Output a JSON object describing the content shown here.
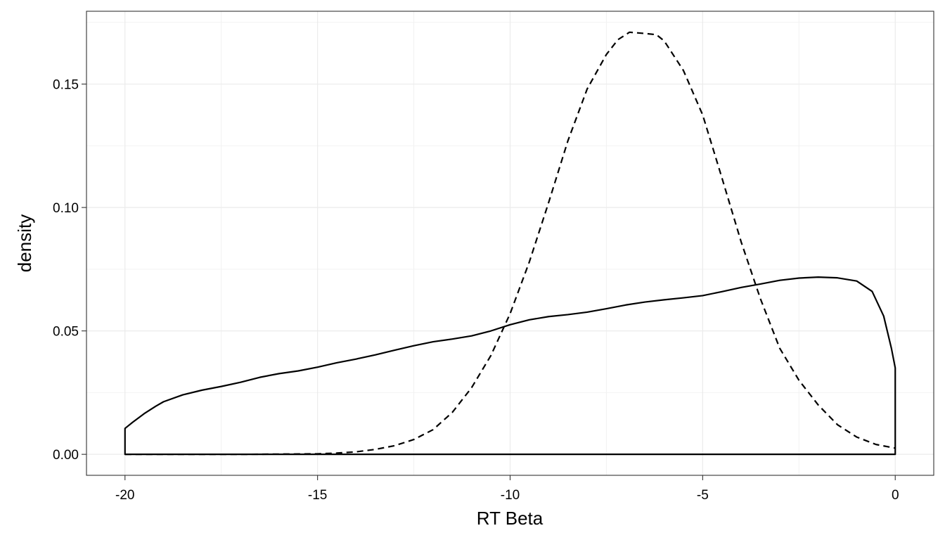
{
  "chart_data": {
    "type": "line",
    "title": "",
    "xlabel": "RT Beta",
    "ylabel": "density",
    "xlim": [
      -21,
      1
    ],
    "ylim": [
      -0.0085,
      0.1795
    ],
    "x_ticks": [
      -20,
      -15,
      -10,
      -5,
      0
    ],
    "x_tick_labels": [
      "-20",
      "-15",
      "-10",
      "-5",
      "0"
    ],
    "y_ticks": [
      0.0,
      0.05,
      0.1,
      0.15
    ],
    "y_tick_labels": [
      "0.00",
      "0.05",
      "0.10",
      "0.15"
    ],
    "grid": true,
    "legend": "none",
    "series": [
      {
        "line_style": "solid",
        "closed_to_baseline": true,
        "x": [
          -20,
          -19.8,
          -19.5,
          -19.2,
          -19,
          -18.5,
          -18,
          -17.5,
          -17,
          -16.5,
          -16,
          -15.5,
          -15,
          -14.5,
          -14,
          -13.5,
          -13,
          -12.5,
          -12,
          -11.5,
          -11,
          -10.5,
          -10,
          -9.5,
          -9,
          -8.5,
          -8,
          -7.5,
          -7,
          -6.5,
          -6,
          -5.5,
          -5,
          -4.5,
          -4,
          -3.5,
          -3,
          -2.5,
          -2,
          -1.5,
          -1,
          -0.6,
          -0.3,
          -0.1,
          0
        ],
        "values": [
          0.0105,
          0.013,
          0.0165,
          0.0195,
          0.0213,
          0.0241,
          0.026,
          0.0275,
          0.0292,
          0.0312,
          0.0327,
          0.0338,
          0.0353,
          0.0371,
          0.0386,
          0.0403,
          0.0422,
          0.044,
          0.0456,
          0.0467,
          0.048,
          0.05,
          0.0525,
          0.0545,
          0.0558,
          0.0566,
          0.0576,
          0.059,
          0.0605,
          0.0617,
          0.0626,
          0.0634,
          0.0643,
          0.0659,
          0.0676,
          0.069,
          0.0705,
          0.0714,
          0.0718,
          0.0715,
          0.0702,
          0.066,
          0.056,
          0.043,
          0.035
        ]
      },
      {
        "line_style": "dashed",
        "closed_to_baseline": false,
        "x": [
          -20,
          -17,
          -15,
          -14.5,
          -14,
          -13.5,
          -13,
          -12.5,
          -12,
          -11.5,
          -11,
          -10.5,
          -10,
          -9.5,
          -9,
          -8.5,
          -8,
          -7.5,
          -7.2,
          -6.9,
          -6.5,
          -6.2,
          -6,
          -5.5,
          -5,
          -4.5,
          -4,
          -3.5,
          -3,
          -2.5,
          -2,
          -1.5,
          -1,
          -0.5,
          0
        ],
        "values": [
          0.0,
          0.0,
          0.0002,
          0.0005,
          0.001,
          0.002,
          0.0035,
          0.006,
          0.01,
          0.017,
          0.027,
          0.04,
          0.057,
          0.078,
          0.102,
          0.127,
          0.148,
          0.162,
          0.168,
          0.171,
          0.1705,
          0.17,
          0.1675,
          0.1555,
          0.1375,
          0.112,
          0.086,
          0.063,
          0.043,
          0.03,
          0.02,
          0.012,
          0.007,
          0.004,
          0.0025
        ]
      }
    ]
  }
}
